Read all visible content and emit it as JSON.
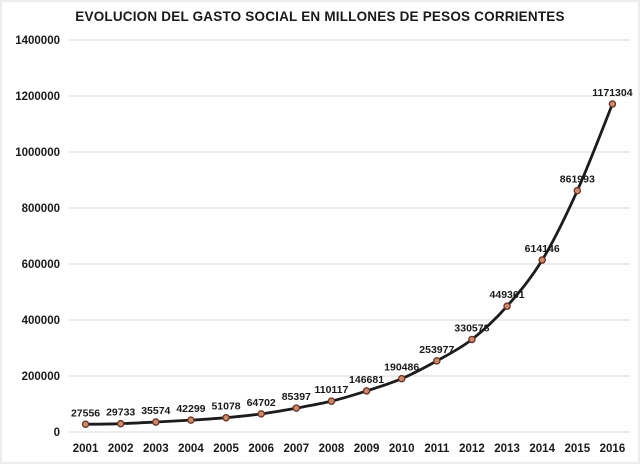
{
  "chart_data": {
    "type": "line",
    "title": "EVOLUCION DEL GASTO SOCIAL EN MILLONES DE PESOS CORRIENTES",
    "categories": [
      "2001",
      "2002",
      "2003",
      "2004",
      "2005",
      "2006",
      "2007",
      "2008",
      "2009",
      "2010",
      "2011",
      "2012",
      "2013",
      "2014",
      "2015",
      "2016"
    ],
    "values": [
      27556,
      29733,
      35574,
      42299,
      51078,
      64702,
      85397,
      110117,
      146681,
      190486,
      253977,
      330578,
      449361,
      614146,
      861993,
      1171304
    ],
    "data_labels": [
      "27556",
      "29733",
      "35574",
      "42299",
      "51078",
      "64702",
      "85397",
      "110117",
      "146681",
      "190486",
      "253977",
      "330578",
      "449361",
      "614146",
      "861993",
      "1171304"
    ],
    "xlabel": "",
    "ylabel": "",
    "ylim": [
      0,
      1400000
    ],
    "ytick_step": 200000,
    "ytick_labels": [
      "0",
      "200000",
      "400000",
      "600000",
      "800000",
      "1000000",
      "1200000",
      "1400000"
    ],
    "grid": true,
    "legend": "none",
    "smoothed_line": true,
    "colors": {
      "line": "#1c1c1c",
      "marker_fill": "#c98a6e",
      "marker_stroke": "#6b3226",
      "grid": "#d9d9d9",
      "text": "#1a1a1a",
      "background": "#ffffff"
    }
  }
}
